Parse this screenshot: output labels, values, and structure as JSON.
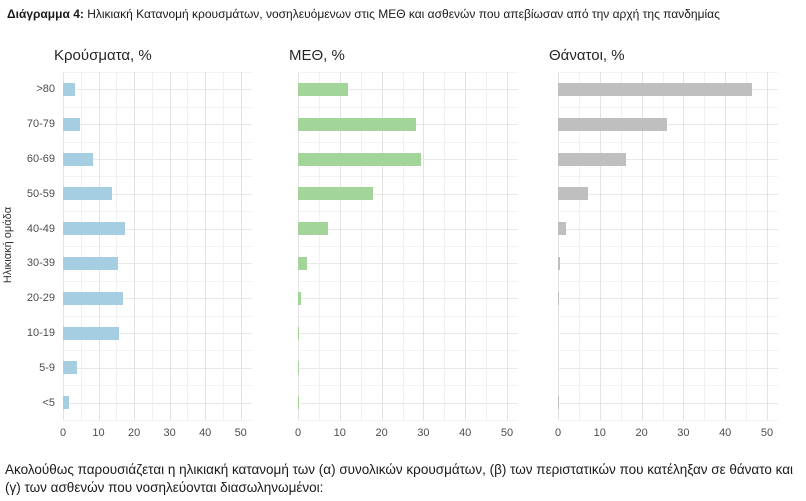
{
  "page": {
    "caption_prefix": "Διάγραμμα 4:",
    "caption_text": " Ηλικιακή Κατανομή κρουσμάτων, νοσηλευόμενων στις ΜΕΘ και ασθενών που απεβίωσαν από την αρχή της πανδημίας",
    "footer_text": "Ακολούθως παρουσιάζεται η ηλικιακή κατανομή των (α) συνολικών κρουσμάτων, (β) των περιστατικών που κατέληξαν σε θάνατο και (γ) των ασθενών που νοσηλεύονται διασωληνωμένοι:"
  },
  "colors": {
    "cases_bar": "#a6cee3",
    "icu_bar": "#a3d49a",
    "deaths_bar": "#bfbfbf",
    "grid_major": "#e2e2e2",
    "grid_minor": "#f0f0f0",
    "text": "#1a1a1a",
    "tick_text": "#4d4d4d"
  },
  "chart_data": [
    {
      "type": "bar",
      "orientation": "horizontal",
      "title": "Κρούσματα, %",
      "ylabel": "Ηλικιακή ομάδα",
      "xlabel": "",
      "categories": [
        ">80",
        "70-79",
        "60-69",
        "50-59",
        "40-49",
        "30-39",
        "20-29",
        "10-19",
        "5-9",
        "<5"
      ],
      "values": [
        3.4,
        4.7,
        8.4,
        13.7,
        17.4,
        15.4,
        16.8,
        15.7,
        4.0,
        1.6
      ],
      "xlim": [
        0,
        50
      ],
      "xticks": [
        0,
        10,
        20,
        30,
        40,
        50
      ],
      "bar_color": "#a6cee3",
      "grid": true,
      "legend": "none"
    },
    {
      "type": "bar",
      "orientation": "horizontal",
      "title": "ΜΕΘ, %",
      "ylabel": "",
      "xlabel": "",
      "categories": [
        ">80",
        "70-79",
        "60-69",
        "50-59",
        "40-49",
        "30-39",
        "20-29",
        "10-19",
        "5-9",
        "<5"
      ],
      "values": [
        12.0,
        28.2,
        29.5,
        17.9,
        7.2,
        2.2,
        0.6,
        0.2,
        0.1,
        0.2
      ],
      "xlim": [
        0,
        50
      ],
      "xticks": [
        0,
        10,
        20,
        30,
        40,
        50
      ],
      "bar_color": "#a3d49a",
      "grid": true,
      "legend": "none"
    },
    {
      "type": "bar",
      "orientation": "horizontal",
      "title": "Θάνατοι, %",
      "ylabel": "",
      "xlabel": "",
      "categories": [
        ">80",
        "70-79",
        "60-69",
        "50-59",
        "40-49",
        "30-39",
        "20-29",
        "10-19",
        "5-9",
        "<5"
      ],
      "values": [
        46.4,
        26.1,
        16.2,
        7.1,
        2.0,
        0.5,
        0.1,
        0.0,
        0.0,
        0.1
      ],
      "xlim": [
        0,
        50
      ],
      "xticks": [
        0,
        10,
        20,
        30,
        40,
        50
      ],
      "bar_color": "#bfbfbf",
      "grid": true,
      "legend": "none"
    }
  ]
}
